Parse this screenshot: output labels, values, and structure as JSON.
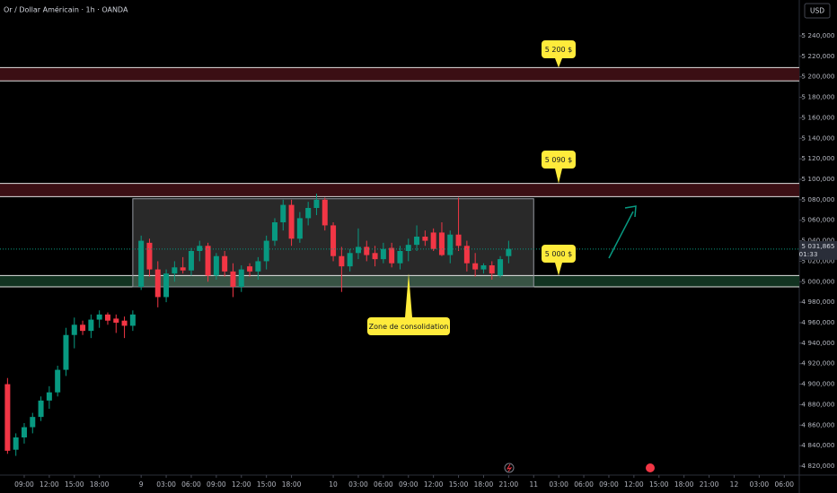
{
  "chart_data": {
    "type": "candlestick",
    "title": "Or / Dollar Américain · 1h · OANDA",
    "currency": "USD",
    "up_color": "#089981",
    "down_color": "#f23645",
    "xlim": [
      -2.9,
      92.8
    ],
    "ylim": [
      4811.25,
      5275
    ],
    "xticks": [
      {
        "value": 0,
        "label": "09:00"
      },
      {
        "value": 3,
        "label": "12:00"
      },
      {
        "value": 6,
        "label": "15:00"
      },
      {
        "value": 9,
        "label": "18:00"
      },
      {
        "value": 14,
        "label": "9"
      },
      {
        "value": 17,
        "label": "03:00"
      },
      {
        "value": 20,
        "label": "06:00"
      },
      {
        "value": 23,
        "label": "09:00"
      },
      {
        "value": 26,
        "label": "12:00"
      },
      {
        "value": 29,
        "label": "15:00"
      },
      {
        "value": 32,
        "label": "18:00"
      },
      {
        "value": 37,
        "label": "10"
      },
      {
        "value": 40,
        "label": "03:00"
      },
      {
        "value": 43,
        "label": "06:00"
      },
      {
        "value": 46,
        "label": "09:00"
      },
      {
        "value": 49,
        "label": "12:00"
      },
      {
        "value": 52,
        "label": "15:00"
      },
      {
        "value": 55,
        "label": "18:00"
      },
      {
        "value": 58,
        "label": "21:00"
      },
      {
        "value": 61,
        "label": "11"
      },
      {
        "value": 64,
        "label": "03:00"
      },
      {
        "value": 67,
        "label": "06:00"
      },
      {
        "value": 70,
        "label": "09:00"
      },
      {
        "value": 73,
        "label": "12:00"
      },
      {
        "value": 76,
        "label": "15:00"
      },
      {
        "value": 79,
        "label": "18:00"
      },
      {
        "value": 82,
        "label": "21:00"
      },
      {
        "value": 85,
        "label": "12"
      },
      {
        "value": 88,
        "label": "03:00"
      },
      {
        "value": 91,
        "label": "06:00"
      }
    ],
    "yticks": [
      {
        "value": 4820,
        "label": "4 820,000"
      },
      {
        "value": 4840,
        "label": "4 840,000"
      },
      {
        "value": 4860,
        "label": "4 860,000"
      },
      {
        "value": 4880,
        "label": "4 880,000"
      },
      {
        "value": 4900,
        "label": "4 900,000"
      },
      {
        "value": 4920,
        "label": "4 920,000"
      },
      {
        "value": 4940,
        "label": "4 940,000"
      },
      {
        "value": 4960,
        "label": "4 960,000"
      },
      {
        "value": 4980,
        "label": "4 980,000"
      },
      {
        "value": 5000,
        "label": "5 000,000"
      },
      {
        "value": 5020,
        "label": "5 020,000"
      },
      {
        "value": 5040,
        "label": "5 040,000"
      },
      {
        "value": 5060,
        "label": "5 060,000"
      },
      {
        "value": 5080,
        "label": "5 080,000"
      },
      {
        "value": 5100,
        "label": "5 100,000"
      },
      {
        "value": 5120,
        "label": "5 120,000"
      },
      {
        "value": 5140,
        "label": "5 140,000"
      },
      {
        "value": 5160,
        "label": "5 160,000"
      },
      {
        "value": 5180,
        "label": "5 180,000"
      },
      {
        "value": 5200,
        "label": "5 200,000"
      },
      {
        "value": 5220,
        "label": "5 220,000"
      },
      {
        "value": 5240,
        "label": "5 240,000"
      }
    ],
    "grid": false,
    "x": [
      -2,
      -1,
      0,
      1,
      2,
      3,
      4,
      5,
      6,
      7,
      8,
      9,
      10,
      11,
      12,
      13,
      14,
      15,
      16,
      17,
      18,
      19,
      20,
      21,
      22,
      23,
      24,
      25,
      26,
      27,
      28,
      29,
      30,
      31,
      32,
      33,
      34,
      35,
      36,
      37,
      38,
      39,
      40,
      41,
      42,
      43,
      44,
      45,
      46,
      47,
      48,
      49,
      50,
      51,
      52,
      53,
      54,
      55,
      56,
      57,
      58
    ],
    "open": [
      4900,
      4836,
      4848,
      4858,
      4868,
      4884,
      4892,
      4914,
      4948,
      4958,
      4952,
      4963,
      4968,
      4964,
      4962,
      4957,
      4995,
      5038,
      5012,
      4985,
      5008,
      5014,
      5011,
      5030,
      5035,
      5006,
      5025,
      5010,
      4995,
      5015,
      5010,
      5020,
      5040,
      5058,
      5075,
      5042,
      5062,
      5072,
      5080,
      5055,
      5025,
      5015,
      5028,
      5034,
      5028,
      5022,
      5033,
      5018,
      5030,
      5036,
      5044,
      5048,
      5048,
      5026,
      5046,
      5035,
      5018,
      5012,
      5016,
      5006,
      5025
    ],
    "high": [
      4906,
      4852,
      4862,
      4872,
      4888,
      4898,
      4918,
      4955,
      4965,
      4962,
      4968,
      4972,
      4970,
      4968,
      4966,
      4972,
      5045,
      5042,
      5020,
      5012,
      5020,
      5024,
      5033,
      5040,
      5038,
      5028,
      5030,
      5018,
      5016,
      5018,
      5024,
      5045,
      5062,
      5080,
      5080,
      5068,
      5078,
      5086,
      5082,
      5058,
      5034,
      5032,
      5052,
      5040,
      5035,
      5038,
      5038,
      5035,
      5042,
      5055,
      5050,
      5052,
      5058,
      5050,
      5082,
      5040,
      5028,
      5018,
      5020,
      5025,
      5040
    ],
    "low": [
      4832,
      4830,
      4842,
      4852,
      4864,
      4876,
      4888,
      4908,
      4935,
      4948,
      4945,
      4955,
      4958,
      4950,
      4945,
      4952,
      4992,
      5005,
      4975,
      4980,
      5000,
      5008,
      5006,
      5020,
      5000,
      5002,
      5005,
      4985,
      4990,
      5005,
      5002,
      5012,
      5035,
      5050,
      5035,
      5038,
      5055,
      5065,
      5050,
      5020,
      4990,
      5010,
      5022,
      5020,
      5015,
      5018,
      5014,
      5012,
      5020,
      5030,
      5035,
      5030,
      5025,
      5018,
      5030,
      5010,
      5005,
      5008,
      5002,
      5004,
      5018
    ],
    "close": [
      4835,
      4848,
      4858,
      4868,
      4884,
      4892,
      4914,
      4948,
      4958,
      4952,
      4963,
      4968,
      4962,
      4960,
      4957,
      4968,
      5040,
      5012,
      4985,
      5008,
      5014,
      5011,
      5030,
      5035,
      5006,
      5025,
      5010,
      4995,
      5012,
      5010,
      5020,
      5040,
      5058,
      5075,
      5042,
      5062,
      5072,
      5080,
      5055,
      5025,
      5015,
      5028,
      5034,
      5026,
      5022,
      5032,
      5018,
      5030,
      5036,
      5044,
      5040,
      5032,
      5026,
      5046,
      5035,
      5018,
      5012,
      5016,
      5008,
      5022,
      5032
    ],
    "zones": [
      {
        "low": 5196,
        "high": 5209,
        "color": "#3b0f14"
      },
      {
        "low": 5083,
        "high": 5096,
        "color": "#3b0f14"
      },
      {
        "low": 4995,
        "high": 5006,
        "color": "#123321"
      }
    ],
    "box": {
      "x": [
        13,
        61
      ],
      "y": [
        4995,
        5081
      ]
    },
    "annotations": [
      "5 200 $",
      "5 090 $",
      "5 000 $",
      "Zone de consolidation"
    ],
    "last_price": 5031.865,
    "last_price_label": "5 031,865",
    "countdown": "01:33"
  }
}
